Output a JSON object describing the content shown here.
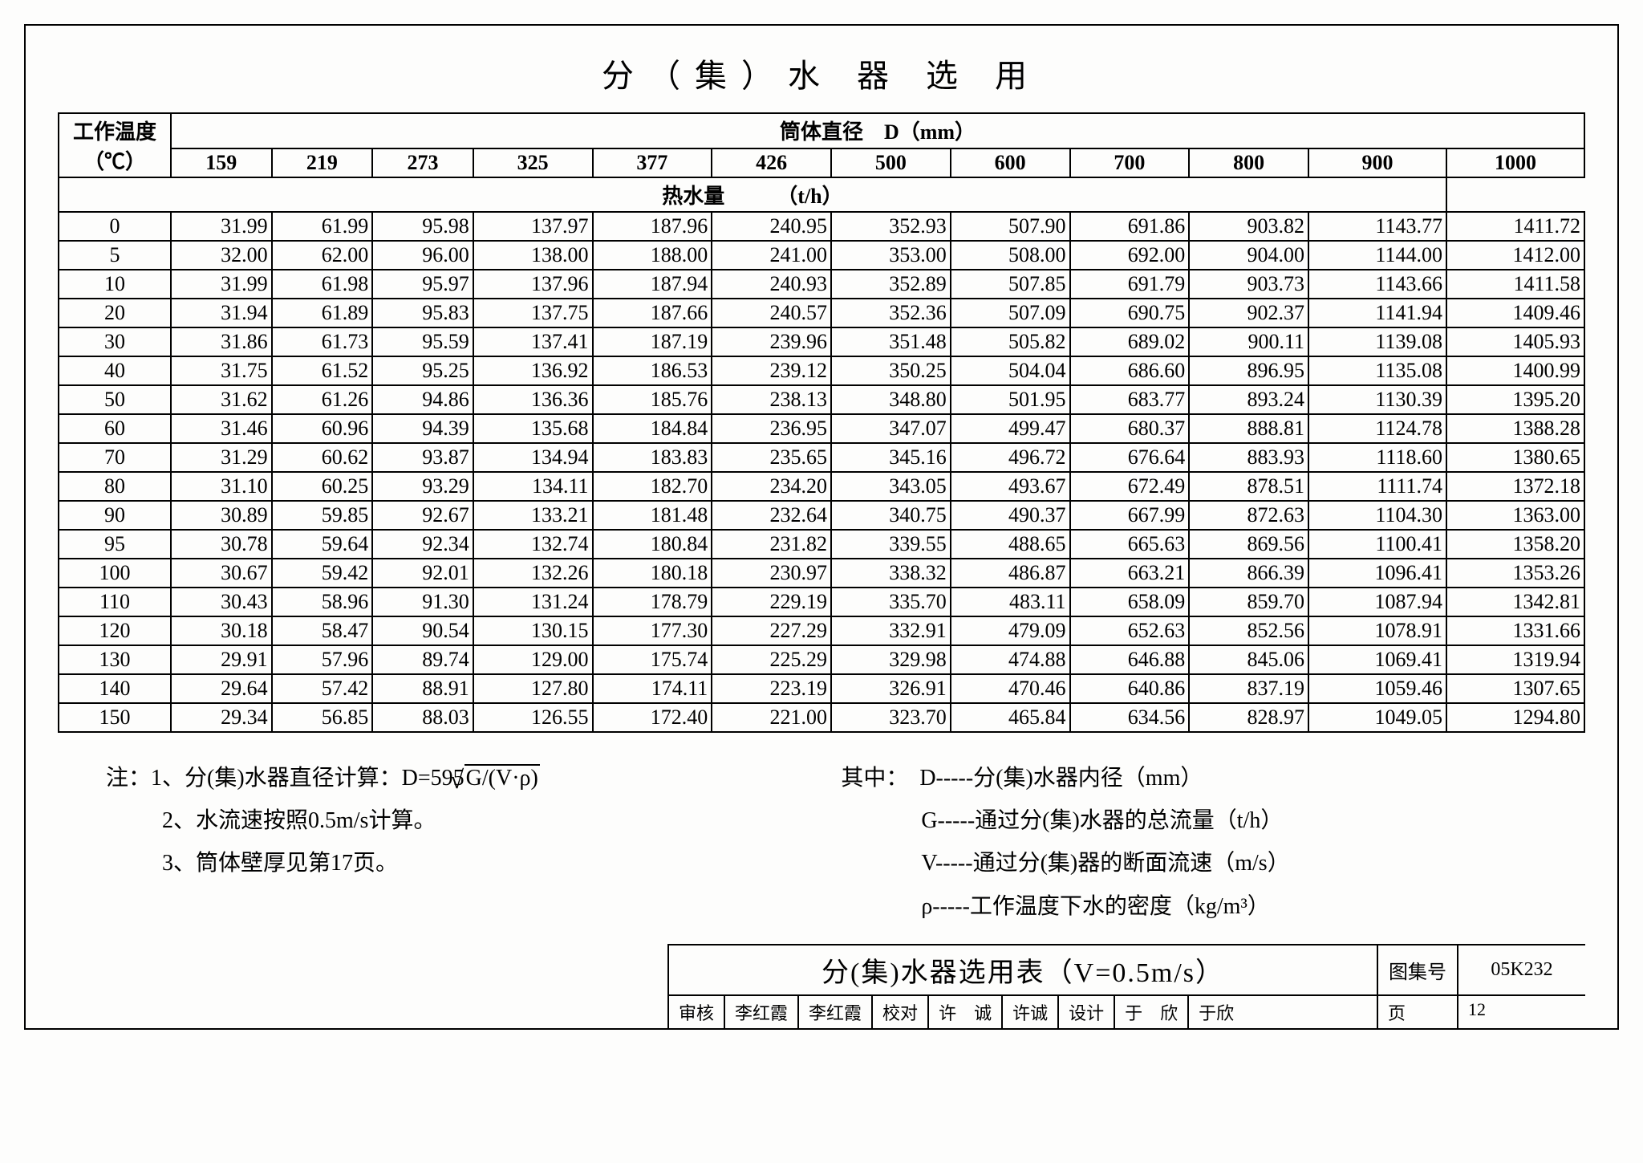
{
  "title": "分（集）水 器 选 用",
  "corner_label_line1": "工作温度",
  "corner_label_line2": "（℃）",
  "span_header": "筒体直径　D（mm）",
  "diameters": [
    "159",
    "219",
    "273",
    "325",
    "377",
    "426",
    "500",
    "600",
    "700",
    "800",
    "900",
    "1000"
  ],
  "subspan_header": "热水量　　　（t/h）",
  "temps": [
    "0",
    "5",
    "10",
    "20",
    "30",
    "40",
    "50",
    "60",
    "70",
    "80",
    "90",
    "95",
    "100",
    "110",
    "120",
    "130",
    "140",
    "150"
  ],
  "rows": [
    [
      "31.99",
      "61.99",
      "95.98",
      "137.97",
      "187.96",
      "240.95",
      "352.93",
      "507.90",
      "691.86",
      "903.82",
      "1143.77",
      "1411.72"
    ],
    [
      "32.00",
      "62.00",
      "96.00",
      "138.00",
      "188.00",
      "241.00",
      "353.00",
      "508.00",
      "692.00",
      "904.00",
      "1144.00",
      "1412.00"
    ],
    [
      "31.99",
      "61.98",
      "95.97",
      "137.96",
      "187.94",
      "240.93",
      "352.89",
      "507.85",
      "691.79",
      "903.73",
      "1143.66",
      "1411.58"
    ],
    [
      "31.94",
      "61.89",
      "95.83",
      "137.75",
      "187.66",
      "240.57",
      "352.36",
      "507.09",
      "690.75",
      "902.37",
      "1141.94",
      "1409.46"
    ],
    [
      "31.86",
      "61.73",
      "95.59",
      "137.41",
      "187.19",
      "239.96",
      "351.48",
      "505.82",
      "689.02",
      "900.11",
      "1139.08",
      "1405.93"
    ],
    [
      "31.75",
      "61.52",
      "95.25",
      "136.92",
      "186.53",
      "239.12",
      "350.25",
      "504.04",
      "686.60",
      "896.95",
      "1135.08",
      "1400.99"
    ],
    [
      "31.62",
      "61.26",
      "94.86",
      "136.36",
      "185.76",
      "238.13",
      "348.80",
      "501.95",
      "683.77",
      "893.24",
      "1130.39",
      "1395.20"
    ],
    [
      "31.46",
      "60.96",
      "94.39",
      "135.68",
      "184.84",
      "236.95",
      "347.07",
      "499.47",
      "680.37",
      "888.81",
      "1124.78",
      "1388.28"
    ],
    [
      "31.29",
      "60.62",
      "93.87",
      "134.94",
      "183.83",
      "235.65",
      "345.16",
      "496.72",
      "676.64",
      "883.93",
      "1118.60",
      "1380.65"
    ],
    [
      "31.10",
      "60.25",
      "93.29",
      "134.11",
      "182.70",
      "234.20",
      "343.05",
      "493.67",
      "672.49",
      "878.51",
      "1111.74",
      "1372.18"
    ],
    [
      "30.89",
      "59.85",
      "92.67",
      "133.21",
      "181.48",
      "232.64",
      "340.75",
      "490.37",
      "667.99",
      "872.63",
      "1104.30",
      "1363.00"
    ],
    [
      "30.78",
      "59.64",
      "92.34",
      "132.74",
      "180.84",
      "231.82",
      "339.55",
      "488.65",
      "665.63",
      "869.56",
      "1100.41",
      "1358.20"
    ],
    [
      "30.67",
      "59.42",
      "92.01",
      "132.26",
      "180.18",
      "230.97",
      "338.32",
      "486.87",
      "663.21",
      "866.39",
      "1096.41",
      "1353.26"
    ],
    [
      "30.43",
      "58.96",
      "91.30",
      "131.24",
      "178.79",
      "229.19",
      "335.70",
      "483.11",
      "658.09",
      "859.70",
      "1087.94",
      "1342.81"
    ],
    [
      "30.18",
      "58.47",
      "90.54",
      "130.15",
      "177.30",
      "227.29",
      "332.91",
      "479.09",
      "652.63",
      "852.56",
      "1078.91",
      "1331.66"
    ],
    [
      "29.91",
      "57.96",
      "89.74",
      "129.00",
      "175.74",
      "225.29",
      "329.98",
      "474.88",
      "646.88",
      "845.06",
      "1069.41",
      "1319.94"
    ],
    [
      "29.64",
      "57.42",
      "88.91",
      "127.80",
      "174.11",
      "223.19",
      "326.91",
      "470.46",
      "640.86",
      "837.19",
      "1059.46",
      "1307.65"
    ],
    [
      "29.34",
      "56.85",
      "88.03",
      "126.55",
      "172.40",
      "221.00",
      "323.70",
      "465.84",
      "634.56",
      "828.97",
      "1049.05",
      "1294.80"
    ]
  ],
  "notes_left": {
    "lead": "注：1、分(集)水器直径计算：D=595√(G/(V·ρ))",
    "n2": "2、水流速按照0.5m/s计算。",
    "n3": "3、筒体壁厚见第17页。"
  },
  "notes_right": {
    "lead": "其中：　D-----分(集)水器内径（mm）",
    "g": "G-----通过分(集)水器的总流量（t/h）",
    "v": "V-----通过分(集)器的断面流速（m/s）",
    "rho": "ρ-----工作温度下水的密度（kg/m³）"
  },
  "titleblock": {
    "main": "分(集)水器选用表（V=0.5m/s）",
    "code_label": "图集号",
    "code": "05K232",
    "review_label": "审核",
    "reviewer": "李红霞",
    "reviewer_sig": "李红霞",
    "check_label": "校对",
    "checker": "许　诚",
    "checker_sig": "许诚",
    "design_label": "设计",
    "designer": "于　欣",
    "designer_sig": "于欣",
    "page_label": "页",
    "page": "12"
  }
}
